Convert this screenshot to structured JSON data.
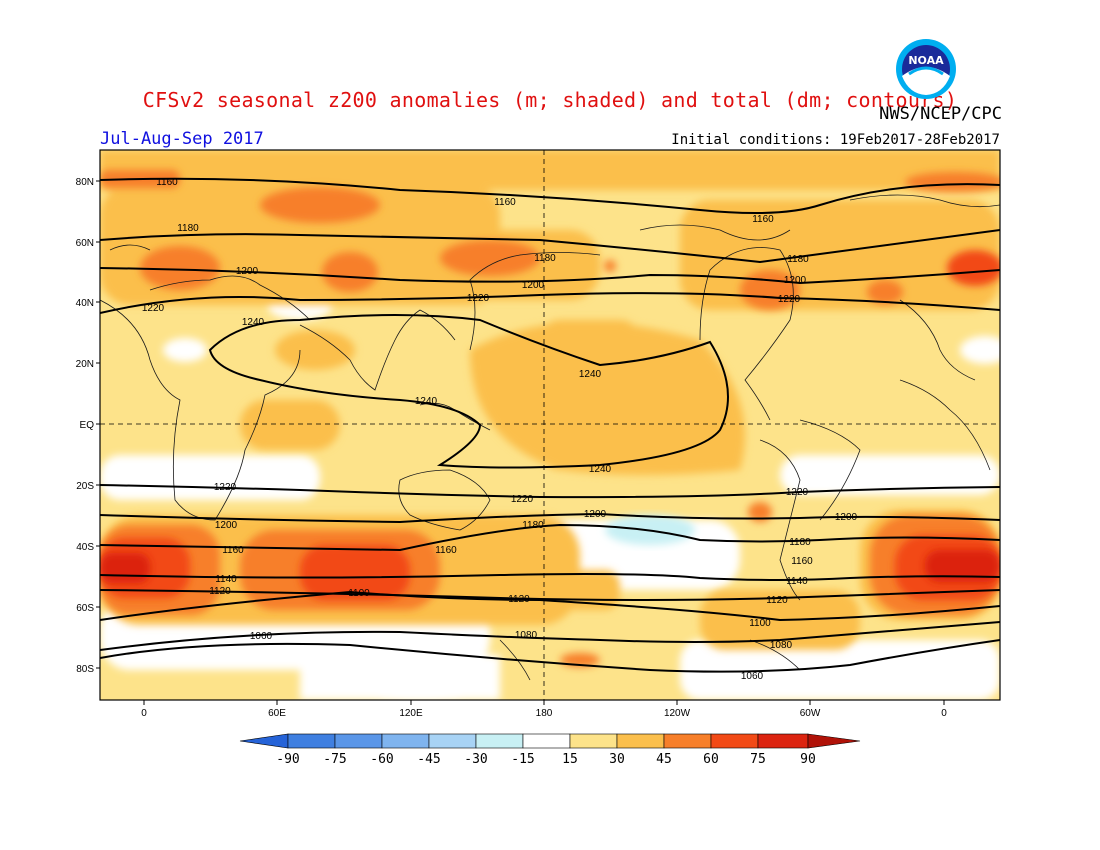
{
  "header": {
    "title": "CFSv2 seasonal z200 anomalies (m; shaded) and total (dm; contours)",
    "agency": "NWS/NCEP/CPC",
    "period": "Jul-Aug-Sep 2017",
    "initial_conditions": "Initial conditions: 19Feb2017-28Feb2017"
  },
  "logo": {
    "text": "NOAA",
    "icon": "noaa-logo-icon"
  },
  "axes": {
    "lat_labels": [
      "80N",
      "60N",
      "40N",
      "20N",
      "EQ",
      "20S",
      "40S",
      "60S",
      "80S"
    ],
    "lon_labels": [
      "0",
      "60E",
      "120E",
      "180",
      "120W",
      "60W",
      "0"
    ]
  },
  "colorbar": {
    "labels": [
      "-90",
      "-75",
      "-60",
      "-45",
      "-30",
      "-15",
      "15",
      "30",
      "45",
      "60",
      "75",
      "90"
    ],
    "colors": {
      "below_-90": "#2563d8",
      "-90_-75": "#3f7fe0",
      "-75_-60": "#5a96e8",
      "-60_-45": "#7fb4ef",
      "-45_-30": "#a8d3f5",
      "-30_-15": "#c8f0f4",
      "-15_15": "#ffffff",
      "15_30": "#fde38a",
      "30_45": "#fbbf4c",
      "45_60": "#f77f2a",
      "60_75": "#f24a16",
      "75_90": "#dc2410",
      "above_90": "#b01208"
    }
  },
  "contour_labels": {
    "north": [
      "1160",
      "1160",
      "1160",
      "1180",
      "1180",
      "1180",
      "1200",
      "1200",
      "1200",
      "1220",
      "1220",
      "1220",
      "1240",
      "1240",
      "1240"
    ],
    "south": [
      "1220",
      "1220",
      "1220",
      "1200",
      "1200",
      "1200",
      "1180",
      "1180",
      "1160",
      "1160",
      "1160",
      "1140",
      "1140",
      "1120",
      "1120",
      "1120",
      "1100",
      "1100",
      "1080",
      "1080",
      "1060",
      "1060",
      "1240"
    ]
  }
}
